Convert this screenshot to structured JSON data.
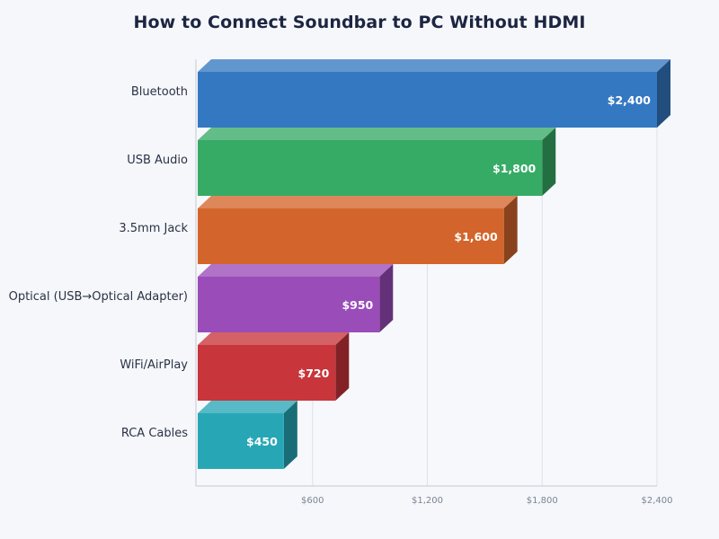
{
  "chart_data": {
    "type": "bar",
    "orientation": "horizontal",
    "title": "How to Connect Soundbar to PC Without HDMI",
    "xlabel": "",
    "ylabel": "",
    "categories": [
      "Bluetooth",
      "USB Audio",
      "3.5mm Jack",
      "Optical (USB→Optical Adapter)",
      "WiFi/AirPlay",
      "RCA Cables"
    ],
    "values": [
      2400,
      1800,
      1600,
      950,
      720,
      450
    ],
    "value_labels": [
      "$2,400",
      "$1,800",
      "$1,600",
      "$950",
      "$720",
      "$450"
    ],
    "colors": [
      "#3478c2",
      "#36ab66",
      "#d3652c",
      "#9a4cb8",
      "#c8353b",
      "#27a7b6"
    ],
    "xlim": [
      0,
      2400
    ],
    "xticks": [
      600,
      1200,
      1800,
      2400
    ],
    "xtick_labels": [
      "$600",
      "$1,200",
      "$1,800",
      "$2,400"
    ],
    "grid": true,
    "legend": "none",
    "style": "3d"
  }
}
